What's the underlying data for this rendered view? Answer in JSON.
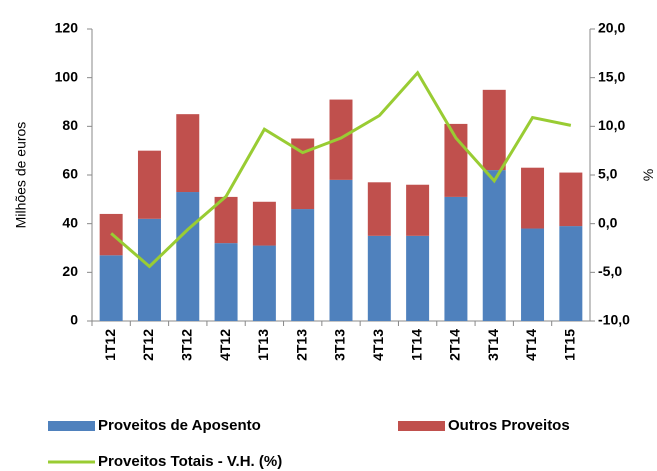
{
  "chart_data": {
    "type": "bar-line",
    "categories": [
      "1T12",
      "2T12",
      "3T12",
      "4T12",
      "1T13",
      "2T13",
      "3T13",
      "4T13",
      "1T14",
      "2T14",
      "3T14",
      "4T14",
      "1T15"
    ],
    "series": [
      {
        "name": "Proveitos de Aposento",
        "type": "bar",
        "color": "#4f81bd",
        "values": [
          27,
          42,
          53,
          32,
          31,
          46,
          58,
          35,
          35,
          51,
          62,
          38,
          39
        ]
      },
      {
        "name": "Outros Proveitos",
        "type": "bar",
        "color": "#c0504d",
        "values": [
          17,
          28,
          32,
          19,
          18,
          29,
          33,
          22,
          21,
          30,
          33,
          25,
          22
        ]
      },
      {
        "name": "Proveitos Totais - V.H. (%)",
        "type": "line",
        "axis": "y2",
        "color": "#99cc33",
        "values": [
          -1.0,
          -4.4,
          -0.6,
          2.8,
          9.7,
          7.3,
          8.8,
          11.1,
          15.5,
          8.8,
          4.4,
          10.9,
          10.1
        ]
      }
    ],
    "y_label": "Milhões de euros",
    "y2_label": "%",
    "ylim": [
      0,
      120
    ],
    "yticks": [
      0,
      20,
      40,
      60,
      80,
      100,
      120
    ],
    "y2lim": [
      -10,
      20
    ],
    "y2ticks": [
      {
        "value": -10,
        "label": "-10,0"
      },
      {
        "value": -5,
        "label": "-5,0"
      },
      {
        "value": 0,
        "label": "0,0"
      },
      {
        "value": 5,
        "label": "5,0"
      },
      {
        "value": 10,
        "label": "10,0"
      },
      {
        "value": 15,
        "label": "15,0"
      },
      {
        "value": 20,
        "label": "20,0"
      }
    ],
    "legend": "bottom"
  }
}
